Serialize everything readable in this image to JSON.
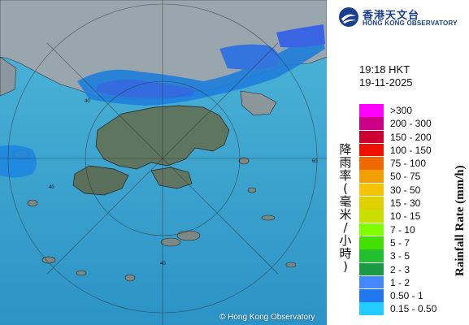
{
  "map": {
    "copyright": "© Hong Kong Observatory",
    "ring_labels": [
      "40",
      "60",
      "40",
      "40"
    ]
  },
  "logo": {
    "name_cn": "香港天文台",
    "name_en": "HONG KONG OBSERVATORY"
  },
  "time": {
    "clock": "19:18 HKT",
    "date": "19-11-2025"
  },
  "legend": {
    "title_cn": [
      "降",
      "雨",
      "率",
      "(",
      "毫",
      "米",
      "/",
      "小",
      "時",
      ")"
    ],
    "title_en": "Rainfall Rate (mm/h)",
    "items": [
      {
        "label": ">300",
        "color": "#ff00ff"
      },
      {
        "label": "200 - 300",
        "color": "#cc0088"
      },
      {
        "label": "150 - 200",
        "color": "#cc0033"
      },
      {
        "label": "100 - 150",
        "color": "#ee1100"
      },
      {
        "label": "75 - 100",
        "color": "#f06800"
      },
      {
        "label": "50 - 75",
        "color": "#f0a000"
      },
      {
        "label": "30 - 50",
        "color": "#f5c400"
      },
      {
        "label": "15 - 30",
        "color": "#e0d000"
      },
      {
        "label": "10 - 15",
        "color": "#c8e000"
      },
      {
        "label": "7 - 10",
        "color": "#80ff00"
      },
      {
        "label": "5 - 7",
        "color": "#44e000"
      },
      {
        "label": "3 - 5",
        "color": "#22c030"
      },
      {
        "label": "2 - 3",
        "color": "#1a9a44"
      },
      {
        "label": "1 - 2",
        "color": "#4488ff"
      },
      {
        "label": "0.50 - 1",
        "color": "#2277ee"
      },
      {
        "label": "0.15 - 0.50",
        "color": "#22ccff"
      }
    ]
  }
}
